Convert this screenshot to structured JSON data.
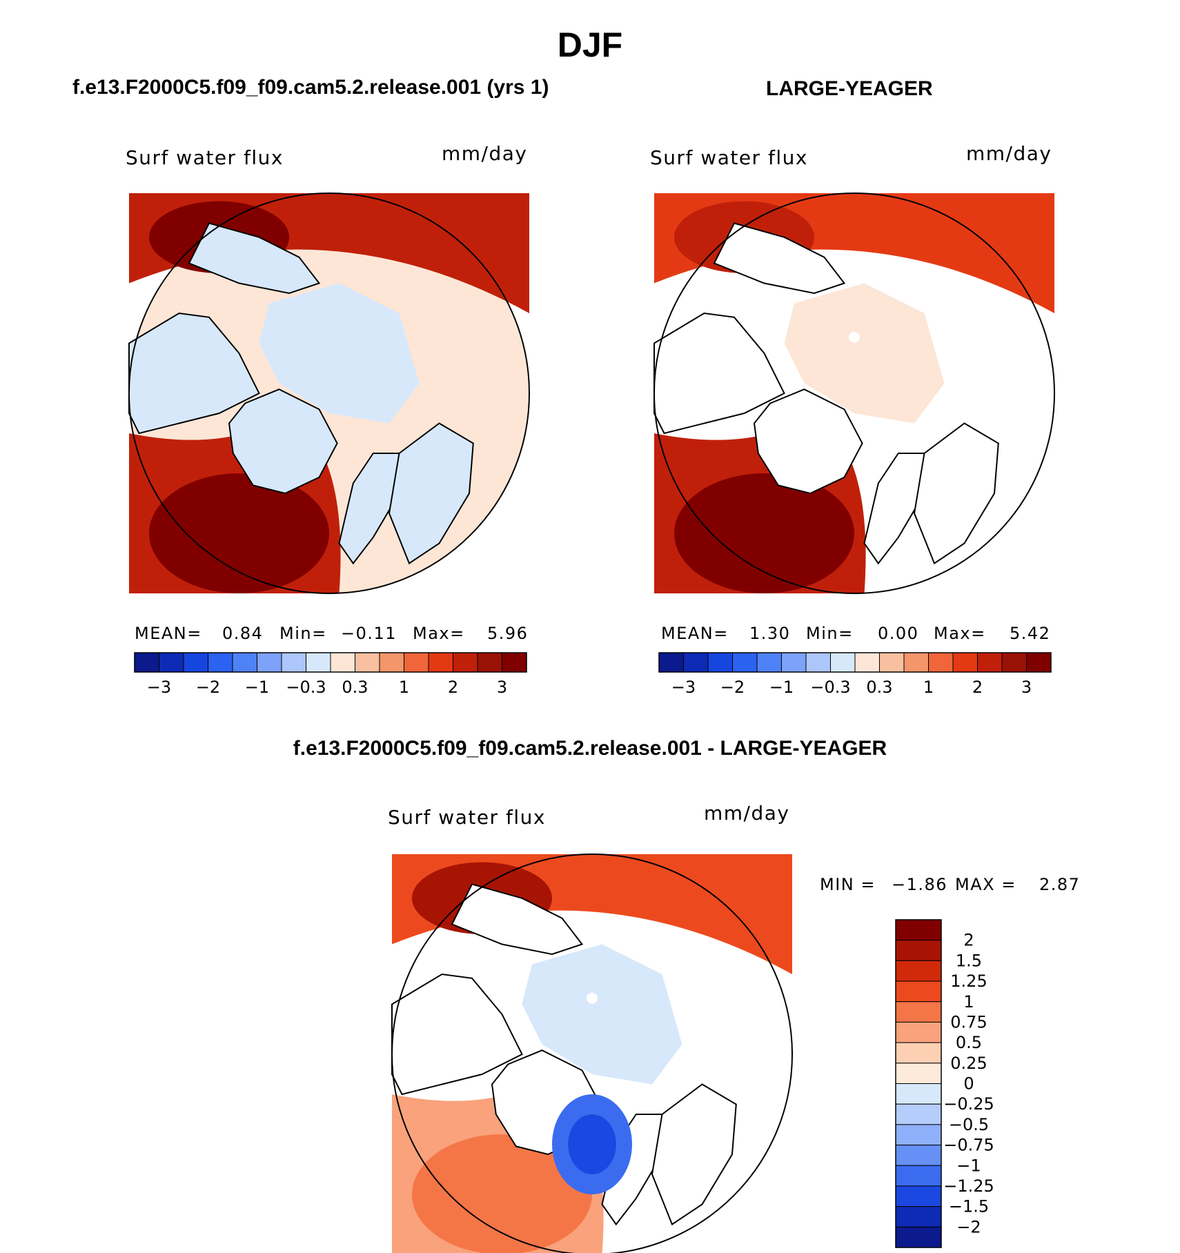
{
  "page_title": "DJF",
  "panels": [
    {
      "title": "f.e13.F2000C5.f09_f09.cam5.2.release.001 (yrs 1)",
      "field_label": "Surf water flux",
      "units": "mm/day",
      "stats": {
        "mean_label": "MEAN=",
        "mean": "0.84",
        "min_label": "Min=",
        "min": "−0.11",
        "max_label": "Max=",
        "max": "5.96"
      }
    },
    {
      "title": "LARGE-YEAGER",
      "field_label": "Surf water flux",
      "units": "mm/day",
      "stats": {
        "mean_label": "MEAN=",
        "mean": "1.30",
        "min_label": "Min=",
        "min": "0.00",
        "max_label": "Max=",
        "max": "5.42"
      }
    },
    {
      "title": "f.e13.F2000C5.f09_f09.cam5.2.release.001 - LARGE-YEAGER",
      "field_label": "Surf water flux",
      "units": "mm/day",
      "stats_line": {
        "min_label": "MIN =",
        "min": "−1.86",
        "max_label": "MAX =",
        "max": "2.87"
      }
    }
  ],
  "chart_data": [
    {
      "type": "heatmap",
      "projection": "north polar stereographic",
      "title": "f.e13.F2000C5.f09_f09.cam5.2.release.001 (yrs 1)",
      "variable": "Surf water flux",
      "units": "mm/day",
      "mean": 0.84,
      "min": -0.11,
      "max": 5.96,
      "color_levels": [
        -3,
        -2.5,
        -2,
        -1.5,
        -1,
        -0.5,
        -0.3,
        0,
        0.3,
        0.6,
        1,
        1.5,
        2,
        2.5,
        3
      ],
      "colorbar_tick_labels": [
        "−3",
        "−2",
        "−1",
        "−0.3",
        "0.3",
        "1",
        "2",
        "3"
      ],
      "colors": [
        "#0b1a8c",
        "#0d2bb5",
        "#1646de",
        "#2b62f0",
        "#4f82f7",
        "#7da2f9",
        "#adc6fb",
        "#d7e8fb",
        "#fde6d6",
        "#f8c0a0",
        "#f5956a",
        "#f0663a",
        "#e43a14",
        "#c0200a",
        "#9a1206",
        "#800000"
      ]
    },
    {
      "type": "heatmap",
      "projection": "north polar stereographic",
      "title": "LARGE-YEAGER",
      "variable": "Surf water flux",
      "units": "mm/day",
      "mean": 1.3,
      "min": 0.0,
      "max": 5.42,
      "color_levels": [
        -3,
        -2.5,
        -2,
        -1.5,
        -1,
        -0.5,
        -0.3,
        0,
        0.3,
        0.6,
        1,
        1.5,
        2,
        2.5,
        3
      ],
      "colorbar_tick_labels": [
        "−3",
        "−2",
        "−1",
        "−0.3",
        "0.3",
        "1",
        "2",
        "3"
      ],
      "colors": [
        "#0b1a8c",
        "#0d2bb5",
        "#1646de",
        "#2b62f0",
        "#4f82f7",
        "#7da2f9",
        "#adc6fb",
        "#d7e8fb",
        "#fde6d6",
        "#f8c0a0",
        "#f5956a",
        "#f0663a",
        "#e43a14",
        "#c0200a",
        "#9a1206",
        "#800000"
      ]
    },
    {
      "type": "heatmap",
      "projection": "north polar stereographic",
      "title": "f.e13.F2000C5.f09_f09.cam5.2.release.001 - LARGE-YEAGER",
      "variable": "Surf water flux",
      "units": "mm/day",
      "min": -1.86,
      "max": 2.87,
      "color_levels": [
        2,
        1.5,
        1.25,
        1,
        0.75,
        0.5,
        0.25,
        0,
        -0.25,
        -0.5,
        -0.75,
        -1,
        -1.25,
        -1.5,
        -2
      ],
      "colorbar_tick_labels": [
        "2",
        "1.5",
        "1.25",
        "1",
        "0.75",
        "0.5",
        "0.25",
        "0",
        "−0.25",
        "−0.5",
        "−0.75",
        "−1",
        "−1.25",
        "−1.5",
        "−2"
      ],
      "colors": [
        "#800000",
        "#a81404",
        "#d02a0a",
        "#ec4a1e",
        "#f47646",
        "#f9a27c",
        "#fdd0b4",
        "#fdeadb",
        "#d7e8fb",
        "#b5cdfb",
        "#8fb0fa",
        "#6690f5",
        "#3b6cf0",
        "#1b48e0",
        "#0d2bb5",
        "#0b1a8c"
      ]
    }
  ]
}
